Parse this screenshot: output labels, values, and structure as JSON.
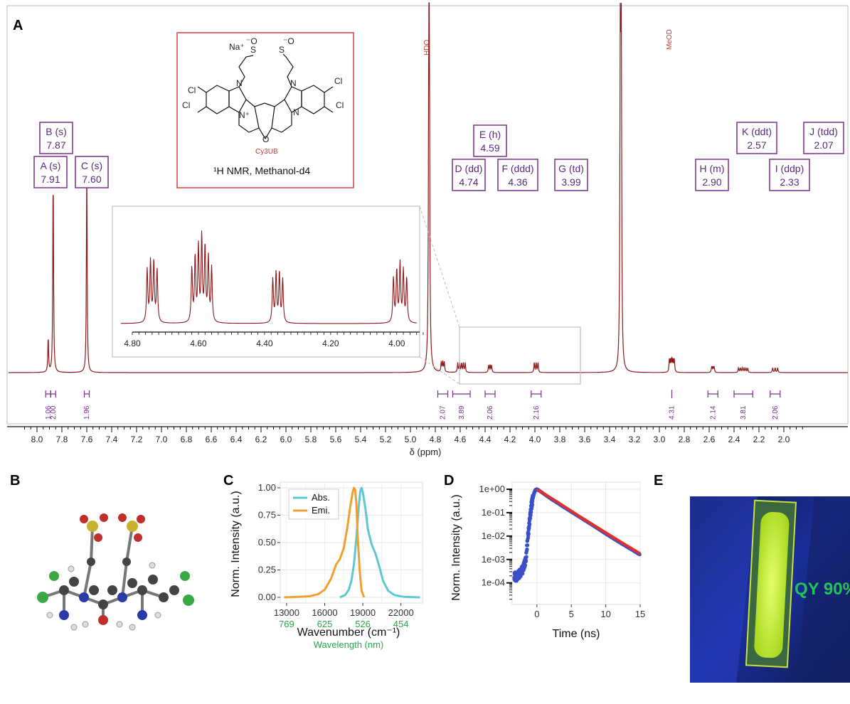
{
  "panels": {
    "a": "A",
    "b": "B",
    "c": "C",
    "d": "D",
    "e": "E"
  },
  "structure": {
    "caption": "¹H NMR, Methanol-d4",
    "name": "Cy3UB",
    "counterion": "Na⁺",
    "anion": "⁻O",
    "atom_cl": "Cl",
    "atom_n": "N",
    "atom_nplus": "N⁺",
    "atom_o": "O",
    "atom_s": "S"
  },
  "nmr": {
    "xlabel": "δ (ppm)",
    "xticks": [
      "8.0",
      "7.8",
      "7.6",
      "7.4",
      "7.2",
      "7.0",
      "6.8",
      "6.6",
      "6.4",
      "6.2",
      "6.0",
      "5.8",
      "5.6",
      "5.4",
      "5.2",
      "5.0",
      "4.8",
      "4.6",
      "4.4",
      "4.2",
      "4.0",
      "3.8",
      "3.6",
      "3.4",
      "3.2",
      "3.0",
      "2.8",
      "2.6",
      "2.4",
      "2.2",
      "2.0"
    ],
    "solvents": [
      {
        "label": "HDO",
        "ppm": 4.85
      },
      {
        "label": "MeOD",
        "ppm": 3.31
      }
    ],
    "peaks": [
      {
        "id": "A",
        "mult": "A (s)",
        "shift": "7.91"
      },
      {
        "id": "B",
        "mult": "B (s)",
        "shift": "7.87"
      },
      {
        "id": "C",
        "mult": "C (s)",
        "shift": "7.60"
      },
      {
        "id": "D",
        "mult": "D (dd)",
        "shift": "4.74"
      },
      {
        "id": "E",
        "mult": "E (h)",
        "shift": "4.59"
      },
      {
        "id": "F",
        "mult": "F (ddd)",
        "shift": "4.36"
      },
      {
        "id": "G",
        "mult": "G (td)",
        "shift": "3.99"
      },
      {
        "id": "H",
        "mult": "H (m)",
        "shift": "2.90"
      },
      {
        "id": "I",
        "mult": "I (ddp)",
        "shift": "2.33"
      },
      {
        "id": "J",
        "mult": "J (tdd)",
        "shift": "2.07"
      },
      {
        "id": "K",
        "mult": "K (ddt)",
        "shift": "2.57"
      }
    ],
    "integrals": [
      "1.06",
      "2.00",
      "1.96",
      "2.07",
      "3.89",
      "2.06",
      "2.16",
      "4.31",
      "2.14",
      "3.81",
      "2.06"
    ],
    "inset_ticks": [
      "4.80",
      "4.60",
      "4.40",
      "4.20",
      "4.00"
    ]
  },
  "chart_data": [
    {
      "type": "line",
      "panel": "A",
      "xlabel": "δ (ppm)",
      "xlim": [
        8.15,
        1.85
      ],
      "peaks_ppm": [
        7.91,
        7.87,
        7.6,
        4.85,
        4.74,
        4.59,
        4.36,
        3.99,
        3.31,
        2.9,
        2.57,
        2.33,
        2.07
      ],
      "relative_heights": [
        0.17,
        0.97,
        1.0,
        3.2,
        0.14,
        0.22,
        0.1,
        0.14,
        3.4,
        0.29,
        0.08,
        0.13,
        0.07
      ]
    },
    {
      "type": "line",
      "panel": "C",
      "xlabel": "Wavenumber (cm⁻¹)",
      "x2label": "Wavelength (nm)",
      "ylabel": "Norm. Intensity (a.u.)",
      "xticks": [
        "13000",
        "16000",
        "19000",
        "22000"
      ],
      "x2ticks": [
        "769",
        "625",
        "526",
        "454"
      ],
      "yticks": [
        "0.00",
        "0.25",
        "0.50",
        "0.75",
        "1.00"
      ],
      "xlim": [
        12500,
        23700
      ],
      "ylim": [
        0,
        1
      ],
      "series": [
        {
          "name": "Abs.",
          "color": "#5bc8d4",
          "x": [
            17200,
            17600,
            17900,
            18100,
            18300,
            18500,
            18700,
            18800,
            18900,
            19000,
            19200,
            19400,
            19700,
            20000,
            20300,
            20600,
            21000,
            21500,
            22200,
            23500
          ],
          "y": [
            0,
            0.02,
            0.07,
            0.15,
            0.3,
            0.55,
            0.85,
            0.97,
            1.0,
            0.96,
            0.82,
            0.62,
            0.48,
            0.4,
            0.28,
            0.15,
            0.06,
            0.02,
            0.005,
            0
          ]
        },
        {
          "name": "Emi.",
          "color": "#f0a030",
          "x": [
            12800,
            14000,
            14800,
            15500,
            16000,
            16500,
            16900,
            17200,
            17500,
            17800,
            18000,
            18200,
            18300,
            18400,
            18500,
            18600,
            18750,
            18900,
            19100
          ],
          "y": [
            0,
            0.005,
            0.01,
            0.03,
            0.07,
            0.17,
            0.3,
            0.35,
            0.45,
            0.65,
            0.82,
            0.96,
            1.0,
            0.98,
            0.85,
            0.55,
            0.25,
            0.06,
            0
          ]
        }
      ]
    },
    {
      "type": "scatter",
      "panel": "D",
      "xlabel": "Time (ns)",
      "ylabel": "Norm. Intensity (a.u.)",
      "xticks": [
        "0",
        "5",
        "10",
        "15"
      ],
      "yticks": [
        "1e+00",
        "1e-01",
        "1e-02",
        "1e-03",
        "1e-04"
      ],
      "xlim": [
        -3.6,
        15
      ],
      "ylim_log10": [
        -4.8,
        0
      ],
      "series": [
        {
          "name": "",
          "color": "#3a4fc8",
          "x": [
            -3.3,
            -3,
            -2.5,
            -2,
            -1.6,
            -1.3,
            -1,
            -0.8,
            -0.6,
            -0.4,
            -0.2,
            0,
            0.3,
            2,
            4,
            6,
            8,
            10,
            12,
            14,
            15
          ],
          "y_log10": [
            -3.7,
            -3.75,
            -3.6,
            -3.4,
            -3.0,
            -2.0,
            -1.2,
            -0.7,
            -0.4,
            -0.15,
            -0.02,
            0,
            -0.05,
            -0.4,
            -0.78,
            -1.15,
            -1.52,
            -1.9,
            -2.27,
            -2.62,
            -2.8
          ]
        },
        {
          "name": "",
          "color": "#e0302a",
          "x": [
            0,
            3,
            6,
            9,
            12,
            15
          ],
          "y_log10": [
            0,
            -0.55,
            -1.12,
            -1.67,
            -2.22,
            -2.75
          ]
        }
      ]
    }
  ],
  "photo": {
    "label": "QY 90%"
  }
}
